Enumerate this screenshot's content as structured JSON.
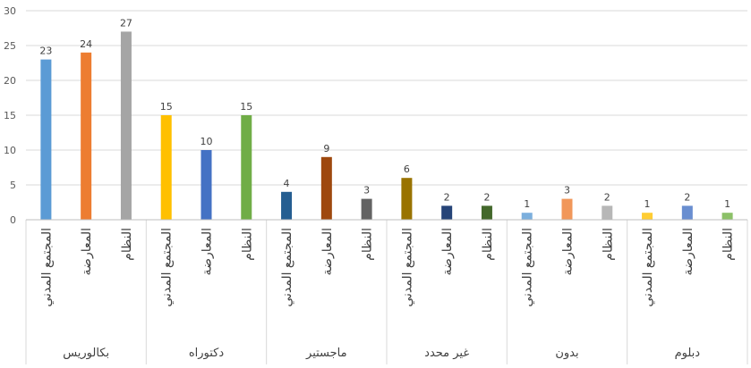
{
  "chart_data": {
    "type": "bar",
    "title": "",
    "xlabel": "",
    "ylabel": "",
    "ylim": [
      0,
      30
    ],
    "yticks": [
      0,
      5,
      10,
      15,
      20,
      25,
      30
    ],
    "grid": true,
    "legend": "none",
    "groups": [
      {
        "label": "بكالوريس",
        "bars": [
          {
            "category": "المجتمع المدني",
            "value": 23,
            "color": "#5B9BD5"
          },
          {
            "category": "المعارضة",
            "value": 24,
            "color": "#ED7D31"
          },
          {
            "category": "النظام",
            "value": 27,
            "color": "#A5A5A5"
          }
        ]
      },
      {
        "label": "دكتوراه",
        "bars": [
          {
            "category": "المجتمع المدني",
            "value": 15,
            "color": "#FFC000"
          },
          {
            "category": "المعارضة",
            "value": 10,
            "color": "#4472C4"
          },
          {
            "category": "النظام",
            "value": 15,
            "color": "#70AD47"
          }
        ]
      },
      {
        "label": "ماجستير",
        "bars": [
          {
            "category": "المجتمع المدني",
            "value": 4,
            "color": "#255E91"
          },
          {
            "category": "المعارضة",
            "value": 9,
            "color": "#9E480E"
          },
          {
            "category": "النظام",
            "value": 3,
            "color": "#636363"
          }
        ]
      },
      {
        "label": "غير محدد",
        "bars": [
          {
            "category": "المجتمع المدني",
            "value": 6,
            "color": "#997300"
          },
          {
            "category": "المعارضة",
            "value": 2,
            "color": "#264478"
          },
          {
            "category": "النظام",
            "value": 2,
            "color": "#43682B"
          }
        ]
      },
      {
        "label": "بدون",
        "bars": [
          {
            "category": "المجتمع المدني",
            "value": 1,
            "color": "#7CAFDD"
          },
          {
            "category": "المعارضة",
            "value": 3,
            "color": "#F1975A"
          },
          {
            "category": "النظام",
            "value": 2,
            "color": "#B7B7B7"
          }
        ]
      },
      {
        "label": "دبلوم",
        "bars": [
          {
            "category": "المجتمع المدني",
            "value": 1,
            "color": "#FFCD33"
          },
          {
            "category": "المعارضة",
            "value": 2,
            "color": "#698ED0"
          },
          {
            "category": "النظام",
            "value": 1,
            "color": "#8CC168"
          }
        ]
      }
    ]
  }
}
